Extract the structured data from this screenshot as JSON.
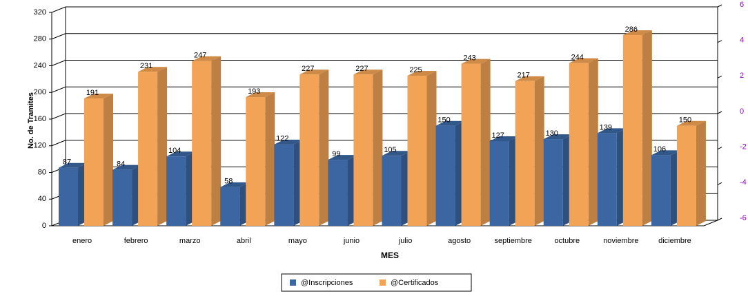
{
  "chart_data": {
    "type": "bar3d",
    "x_label": "MES",
    "y_label": "No. de Tramites",
    "categories": [
      "enero",
      "febrero",
      "marzo",
      "abril",
      "mayo",
      "junio",
      "julio",
      "agosto",
      "septiembre",
      "octubre",
      "noviembre",
      "diciembre"
    ],
    "series": [
      {
        "name": "@Inscripciones",
        "color": "#3b66a1",
        "values": [
          87,
          84,
          104,
          58,
          122,
          99,
          105,
          150,
          127,
          130,
          139,
          106
        ]
      },
      {
        "name": "@Certificados",
        "color": "#f2a355",
        "values": [
          191,
          231,
          247,
          193,
          227,
          227,
          225,
          243,
          217,
          244,
          286,
          150
        ]
      }
    ],
    "ylim": [
      0,
      320
    ],
    "yticks": [
      0,
      40,
      80,
      120,
      160,
      200,
      240,
      280,
      320
    ],
    "y2lim": [
      -6,
      6
    ],
    "y2ticks": [
      -6,
      -4,
      -2,
      0,
      2,
      4,
      6
    ],
    "y2color": "#9900cc",
    "grid": true,
    "legend": "bottom"
  }
}
